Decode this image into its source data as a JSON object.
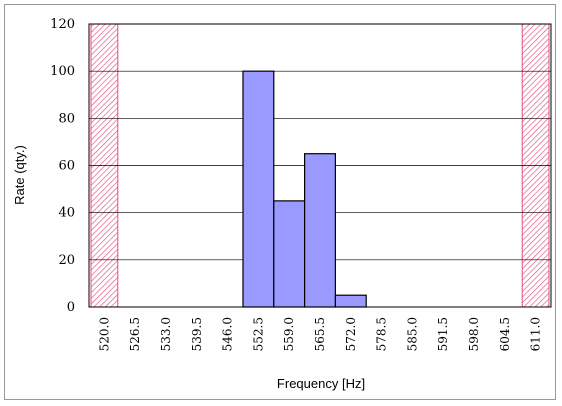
{
  "chart_data": {
    "type": "bar",
    "xlabel": "Frequency [Hz]",
    "ylabel": "Rate (qty.)",
    "ylim": [
      0,
      120
    ],
    "yticks": [
      "0",
      "20",
      "40",
      "60",
      "80",
      "100",
      "120"
    ],
    "categories": [
      "520.0",
      "526.5",
      "533.0",
      "539.5",
      "546.0",
      "552.5",
      "559.0",
      "565.5",
      "572.0",
      "578.5",
      "585.0",
      "591.5",
      "598.0",
      "604.5",
      "611.0"
    ],
    "values": [
      0,
      0,
      0,
      0,
      0,
      100,
      45,
      65,
      5,
      0,
      0,
      0,
      0,
      0,
      0
    ],
    "limit_bands": [
      "520.0",
      "611.0"
    ],
    "grid": "horizontal",
    "bar_color": "#9999ff",
    "limit_band_color": "#e0507a"
  }
}
